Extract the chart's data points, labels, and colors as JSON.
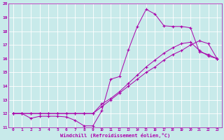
{
  "xlabel": "Windchill (Refroidissement éolien,°C)",
  "background_color": "#c8eaea",
  "grid_color": "#ffffff",
  "line_color": "#aa00aa",
  "xlim": [
    -0.5,
    23.5
  ],
  "ylim": [
    11,
    20
  ],
  "xticks": [
    0,
    1,
    2,
    3,
    4,
    5,
    6,
    7,
    8,
    9,
    10,
    11,
    12,
    13,
    14,
    15,
    16,
    17,
    18,
    19,
    20,
    21,
    22,
    23
  ],
  "yticks": [
    11,
    12,
    13,
    14,
    15,
    16,
    17,
    18,
    19,
    20
  ],
  "line1_x": [
    0,
    1,
    2,
    3,
    4,
    5,
    6,
    7,
    8,
    9,
    10,
    11,
    12,
    13,
    14,
    15,
    16,
    17,
    18,
    19,
    20,
    21,
    22,
    23
  ],
  "line1_y": [
    12.0,
    12.0,
    11.65,
    11.8,
    11.8,
    11.8,
    11.75,
    11.5,
    11.1,
    11.1,
    12.2,
    14.5,
    14.7,
    16.65,
    18.35,
    19.6,
    19.25,
    18.4,
    18.35,
    18.35,
    18.25,
    16.5,
    16.3,
    16.0
  ],
  "line2_x": [
    0,
    1,
    2,
    3,
    4,
    5,
    6,
    7,
    8,
    9,
    10,
    11,
    12,
    13,
    14,
    15,
    16,
    17,
    18,
    19,
    20,
    21,
    22,
    23
  ],
  "line2_y": [
    12.0,
    12.0,
    12.0,
    12.0,
    12.0,
    12.0,
    12.0,
    12.0,
    12.0,
    12.0,
    12.5,
    13.0,
    13.5,
    14.0,
    14.5,
    15.0,
    15.4,
    15.9,
    16.3,
    16.6,
    17.0,
    17.3,
    17.1,
    16.0
  ],
  "line3_x": [
    0,
    1,
    2,
    3,
    4,
    5,
    6,
    7,
    8,
    9,
    10,
    11,
    12,
    13,
    14,
    15,
    16,
    17,
    18,
    19,
    20,
    21,
    22,
    23
  ],
  "line3_y": [
    12.0,
    12.0,
    12.0,
    12.0,
    12.0,
    12.0,
    12.0,
    12.0,
    12.0,
    12.0,
    12.7,
    13.1,
    13.6,
    14.2,
    14.8,
    15.4,
    15.9,
    16.4,
    16.8,
    17.1,
    17.2,
    16.6,
    16.2,
    16.0
  ]
}
